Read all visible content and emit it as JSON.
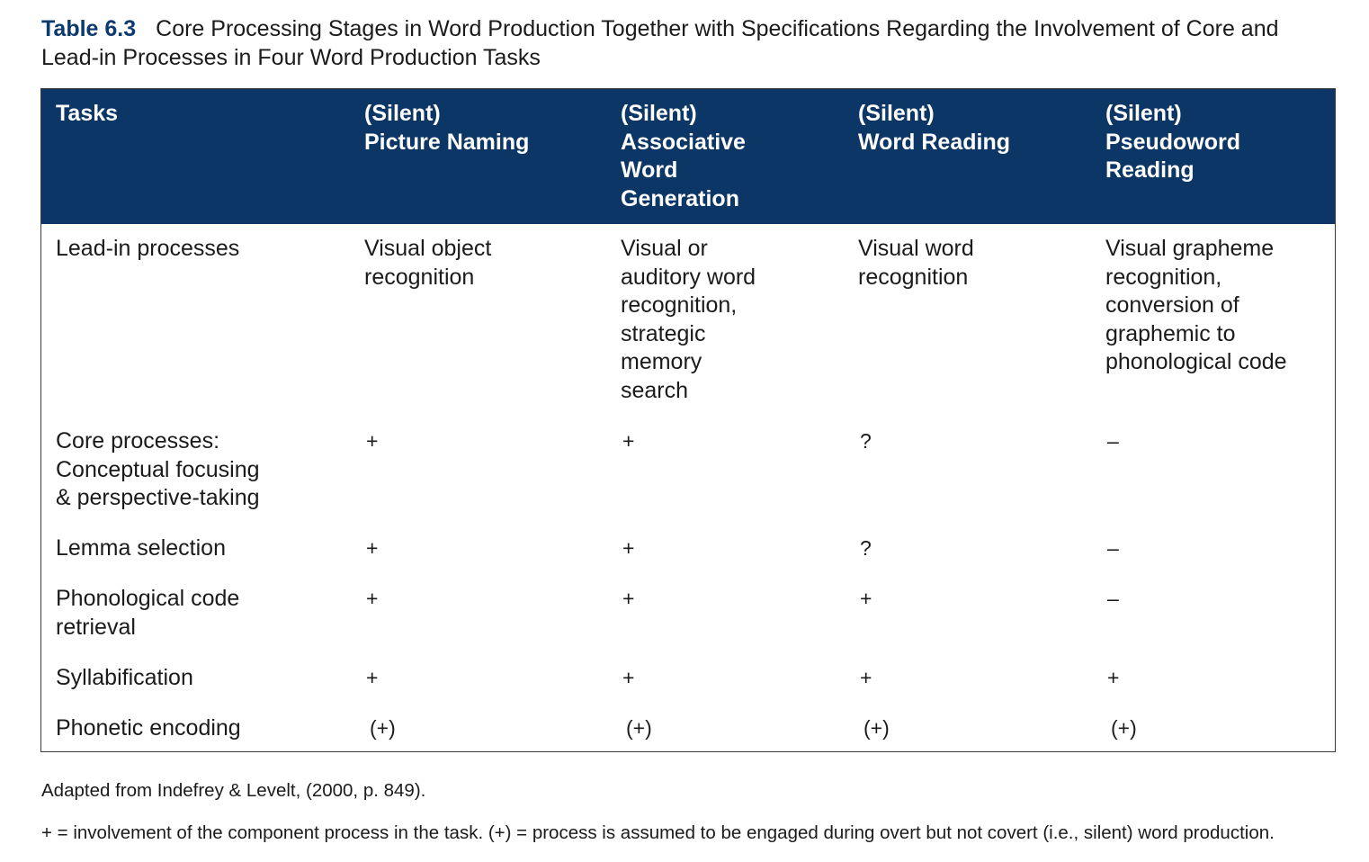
{
  "caption": {
    "label": "Table 6.3",
    "title": "Core Processing Stages in Word Production Together with Specifications Regarding the Involvement of Core and Lead-in Processes in Four Word Production Tasks"
  },
  "table": {
    "header": {
      "tasks": "Tasks",
      "picture_naming": [
        "(Silent)",
        "Picture Naming"
      ],
      "associative": [
        "(Silent)",
        "Associative",
        "Word",
        "Generation"
      ],
      "word_reading": [
        "(Silent)",
        "Word Reading"
      ],
      "pseudoword": [
        "(Silent)",
        "Pseudoword",
        "Reading"
      ]
    },
    "lead_in": {
      "label": "Lead-in processes",
      "picture_naming": [
        "Visual object",
        "recognition"
      ],
      "associative": [
        "Visual or",
        "auditory word",
        "recognition,",
        "strategic",
        "memory",
        "search"
      ],
      "word_reading": [
        "Visual word",
        "recognition"
      ],
      "pseudoword": [
        "Visual grapheme",
        "recognition,",
        "conversion of",
        "graphemic to",
        "phonological code"
      ]
    },
    "rows": [
      {
        "label": [
          "Core processes:",
          "Conceptual focusing",
          "& perspective-taking"
        ],
        "values": [
          "+",
          "+",
          "?",
          "–"
        ]
      },
      {
        "label": [
          "Lemma selection"
        ],
        "values": [
          "+",
          "+",
          "?",
          "–"
        ]
      },
      {
        "label": [
          "Phonological code",
          "retrieval"
        ],
        "values": [
          "+",
          "+",
          "+",
          "–"
        ]
      },
      {
        "label": [
          "Syllabification"
        ],
        "values": [
          "+",
          "+",
          "+",
          "+"
        ]
      },
      {
        "label": [
          "Phonetic encoding"
        ],
        "values": [
          "(+)",
          "(+)",
          "(+)",
          "(+)"
        ]
      }
    ]
  },
  "notes": {
    "source": "Adapted from Indefrey & Levelt, (2000, p. 849).",
    "legend": "+ = involvement of the component process in the task. (+) = process is assumed to be engaged during overt but not covert (i.e., silent) word production."
  },
  "colors": {
    "header_bg": "#0c3665",
    "header_text": "#ffffff",
    "label_accent": "#0d3a6e"
  }
}
